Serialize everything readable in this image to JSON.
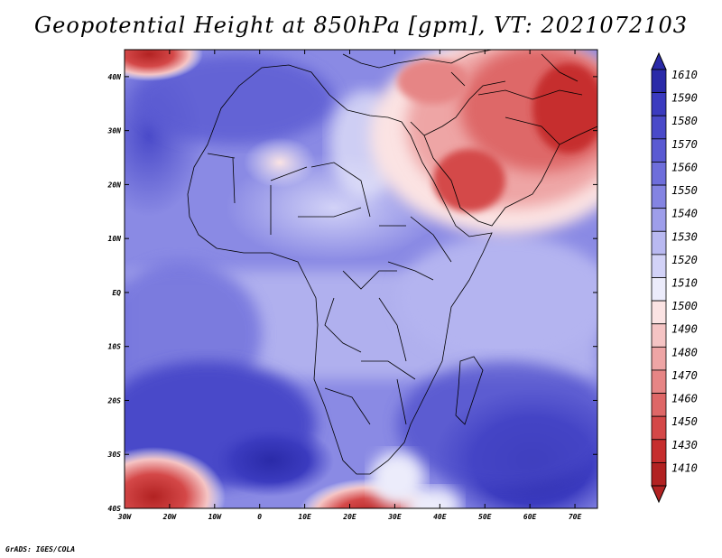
{
  "title": "Geopotential Height at 850hPa [gpm], VT: 2021072103",
  "credit": "GrADS: IGES/COLA",
  "map": {
    "lon_range": [
      -30,
      75
    ],
    "lat_range": [
      -40,
      45
    ],
    "lon_ticks": [
      "30W",
      "20W",
      "10W",
      "0",
      "10E",
      "20E",
      "30E",
      "40E",
      "50E",
      "60E",
      "70E"
    ],
    "lat_ticks": [
      "40N",
      "30N",
      "20N",
      "10N",
      "EQ",
      "10S",
      "20S",
      "30S",
      "40S"
    ]
  },
  "colorbar": {
    "labels": [
      "1610",
      "1590",
      "1580",
      "1570",
      "1560",
      "1550",
      "1540",
      "1530",
      "1520",
      "1510",
      "1500",
      "1490",
      "1480",
      "1470",
      "1460",
      "1450",
      "1430",
      "1410"
    ],
    "colors": [
      "#2a2aa8",
      "#3b3bbf",
      "#4a4ac9",
      "#5a5ad2",
      "#6e6edb",
      "#8484e2",
      "#9e9eea",
      "#b9b9f1",
      "#d2d2f7",
      "#ececfb",
      "#fbe3e3",
      "#f5c4c4",
      "#eea5a5",
      "#e68585",
      "#de6767",
      "#d44848",
      "#c62e2e",
      "#b22222"
    ]
  }
}
